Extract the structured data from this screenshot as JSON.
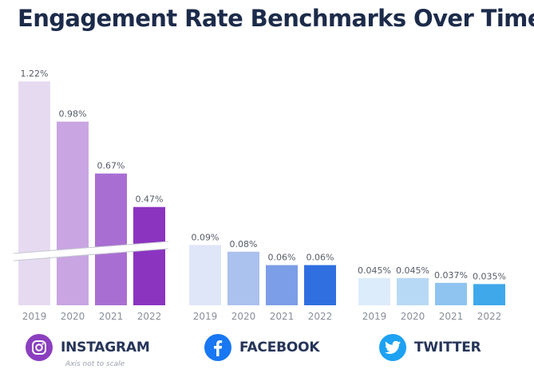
{
  "title": "Engagement Rate Benchmarks Over Time",
  "note": "Axis not to scale",
  "chart_data": {
    "type": "bar",
    "title": "Engagement Rate Benchmarks Over Time",
    "categories": [
      "2019",
      "2020",
      "2021",
      "2022"
    ],
    "axis_break": true,
    "groups": [
      {
        "name": "INSTAGRAM",
        "values": [
          1.22,
          0.98,
          0.67,
          0.47
        ],
        "labels": [
          "1.22%",
          "0.98%",
          "0.67%",
          "0.47%"
        ],
        "colors": [
          "#e6daf1",
          "#c9a5e2",
          "#a96ed2",
          "#8a34c0"
        ]
      },
      {
        "name": "FACEBOOK",
        "values": [
          0.09,
          0.08,
          0.06,
          0.06
        ],
        "labels": [
          "0.09%",
          "0.08%",
          "0.06%",
          "0.06%"
        ],
        "colors": [
          "#dfe6f8",
          "#abc1ee",
          "#7c9ee8",
          "#2f6fe0"
        ]
      },
      {
        "name": "TWITTER",
        "values": [
          0.045,
          0.045,
          0.037,
          0.035
        ],
        "labels": [
          "0.045%",
          "0.045%",
          "0.037%",
          "0.035%"
        ],
        "colors": [
          "#dcecfb",
          "#b8d9f5",
          "#8ec4ef",
          "#3fa8ea"
        ]
      }
    ]
  },
  "brands": [
    {
      "name": "INSTAGRAM",
      "icon": "instagram-icon",
      "color": "#8b3fc0"
    },
    {
      "name": "FACEBOOK",
      "icon": "facebook-icon",
      "color": "#1877f2"
    },
    {
      "name": "TWITTER",
      "icon": "twitter-icon",
      "color": "#1da1f2"
    }
  ]
}
